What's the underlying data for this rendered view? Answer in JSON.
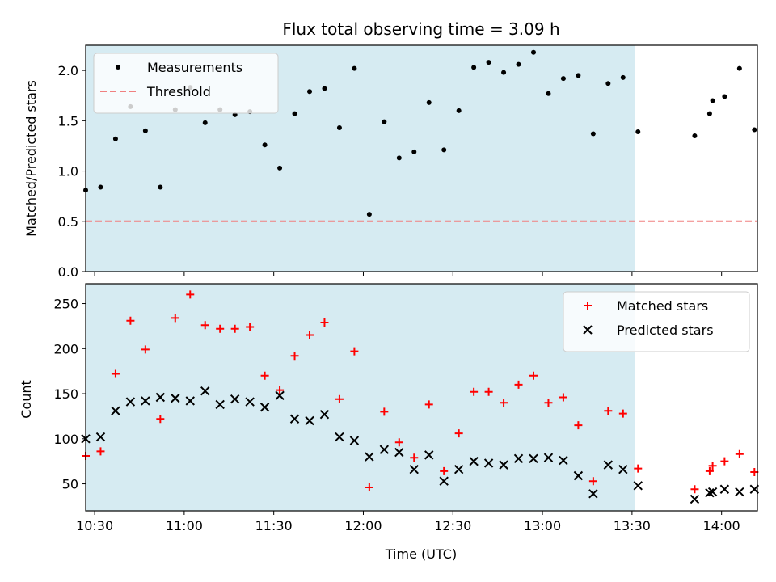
{
  "chart_data": {
    "title": "Flux total observing time = 3.09 h",
    "xlabel": "Time (UTC)",
    "x_unit": "HH:MM (UTC)",
    "xlim": [
      "10:27",
      "14:12"
    ],
    "x_ticks": [
      "10:30",
      "11:00",
      "11:30",
      "12:00",
      "12:30",
      "13:00",
      "13:30",
      "14:00"
    ],
    "shaded_span": {
      "start": "10:27",
      "end": "13:31",
      "color": "#add8e6"
    },
    "panels": [
      {
        "type": "scatter",
        "ylabel": "Matched/Predicted stars",
        "ylim": [
          0,
          2.25
        ],
        "yticks": [
          "0.0",
          "0.5",
          "1.0",
          "1.5",
          "2.0"
        ],
        "legend": {
          "placement": "top-left"
        },
        "threshold": {
          "name": "Threshold",
          "value": 0.5,
          "x_start": "10:27",
          "x_end": "14:12",
          "color": "#f08080",
          "style": "dashed"
        },
        "series": [
          {
            "name": "Measurements",
            "marker": "dot",
            "color": "#000000",
            "points": [
              [
                "10:27",
                0.81
              ],
              [
                "10:32",
                0.84
              ],
              [
                "10:37",
                1.32
              ],
              [
                "10:42",
                1.64
              ],
              [
                "10:47",
                1.4
              ],
              [
                "10:52",
                0.84
              ],
              [
                "10:57",
                1.61
              ],
              [
                "11:02",
                1.83
              ],
              [
                "11:07",
                1.48
              ],
              [
                "11:12",
                1.61
              ],
              [
                "11:17",
                1.56
              ],
              [
                "11:22",
                1.59
              ],
              [
                "11:27",
                1.26
              ],
              [
                "11:32",
                1.03
              ],
              [
                "11:37",
                1.57
              ],
              [
                "11:42",
                1.79
              ],
              [
                "11:47",
                1.82
              ],
              [
                "11:52",
                1.43
              ],
              [
                "11:57",
                2.02
              ],
              [
                "12:02",
                0.57
              ],
              [
                "12:07",
                1.49
              ],
              [
                "12:12",
                1.13
              ],
              [
                "12:17",
                1.19
              ],
              [
                "12:22",
                1.68
              ],
              [
                "12:27",
                1.21
              ],
              [
                "12:32",
                1.6
              ],
              [
                "12:37",
                2.03
              ],
              [
                "12:42",
                2.08
              ],
              [
                "12:47",
                1.98
              ],
              [
                "12:52",
                2.06
              ],
              [
                "12:57",
                2.18
              ],
              [
                "13:02",
                1.77
              ],
              [
                "13:07",
                1.92
              ],
              [
                "13:12",
                1.95
              ],
              [
                "13:17",
                1.37
              ],
              [
                "13:22",
                1.87
              ],
              [
                "13:27",
                1.93
              ],
              [
                "13:32",
                1.39
              ],
              [
                "13:51",
                1.35
              ],
              [
                "13:56",
                1.57
              ],
              [
                "13:57",
                1.7
              ],
              [
                "14:01",
                1.74
              ],
              [
                "14:06",
                2.02
              ],
              [
                "14:11",
                1.41
              ]
            ]
          }
        ]
      },
      {
        "type": "scatter",
        "ylabel": "Count",
        "ylim": [
          20,
          272
        ],
        "yticks": [
          "50",
          "100",
          "150",
          "200",
          "250"
        ],
        "legend": {
          "placement": "top-right"
        },
        "series": [
          {
            "name": "Matched stars",
            "marker": "plus",
            "color": "#ff0000",
            "points": [
              [
                "10:27",
                81
              ],
              [
                "10:32",
                86
              ],
              [
                "10:37",
                172
              ],
              [
                "10:42",
                231
              ],
              [
                "10:47",
                199
              ],
              [
                "10:52",
                122
              ],
              [
                "10:57",
                234
              ],
              [
                "11:02",
                260
              ],
              [
                "11:07",
                226
              ],
              [
                "11:12",
                222
              ],
              [
                "11:17",
                222
              ],
              [
                "11:22",
                224
              ],
              [
                "11:27",
                170
              ],
              [
                "11:32",
                154
              ],
              [
                "11:37",
                192
              ],
              [
                "11:42",
                215
              ],
              [
                "11:47",
                229
              ],
              [
                "11:52",
                144
              ],
              [
                "11:57",
                197
              ],
              [
                "12:02",
                46
              ],
              [
                "12:07",
                130
              ],
              [
                "12:12",
                96
              ],
              [
                "12:17",
                79
              ],
              [
                "12:22",
                138
              ],
              [
                "12:27",
                64
              ],
              [
                "12:32",
                106
              ],
              [
                "12:37",
                152
              ],
              [
                "12:42",
                152
              ],
              [
                "12:47",
                140
              ],
              [
                "12:52",
                160
              ],
              [
                "12:57",
                170
              ],
              [
                "13:02",
                140
              ],
              [
                "13:07",
                146
              ],
              [
                "13:12",
                115
              ],
              [
                "13:17",
                53
              ],
              [
                "13:22",
                131
              ],
              [
                "13:27",
                128
              ],
              [
                "13:32",
                67
              ],
              [
                "13:51",
                44
              ],
              [
                "13:56",
                64
              ],
              [
                "13:57",
                70
              ],
              [
                "14:01",
                75
              ],
              [
                "14:06",
                83
              ],
              [
                "14:11",
                63
              ]
            ]
          },
          {
            "name": "Predicted stars",
            "marker": "x",
            "color": "#000000",
            "points": [
              [
                "10:27",
                100
              ],
              [
                "10:32",
                102
              ],
              [
                "10:37",
                131
              ],
              [
                "10:42",
                141
              ],
              [
                "10:47",
                142
              ],
              [
                "10:52",
                146
              ],
              [
                "10:57",
                145
              ],
              [
                "11:02",
                142
              ],
              [
                "11:07",
                153
              ],
              [
                "11:12",
                138
              ],
              [
                "11:17",
                144
              ],
              [
                "11:22",
                141
              ],
              [
                "11:27",
                135
              ],
              [
                "11:32",
                148
              ],
              [
                "11:37",
                122
              ],
              [
                "11:42",
                120
              ],
              [
                "11:47",
                127
              ],
              [
                "11:52",
                102
              ],
              [
                "11:57",
                98
              ],
              [
                "12:02",
                80
              ],
              [
                "12:07",
                88
              ],
              [
                "12:12",
                85
              ],
              [
                "12:17",
                66
              ],
              [
                "12:22",
                82
              ],
              [
                "12:27",
                53
              ],
              [
                "12:32",
                66
              ],
              [
                "12:37",
                75
              ],
              [
                "12:42",
                73
              ],
              [
                "12:47",
                71
              ],
              [
                "12:52",
                78
              ],
              [
                "12:57",
                78
              ],
              [
                "13:02",
                79
              ],
              [
                "13:07",
                76
              ],
              [
                "13:12",
                59
              ],
              [
                "13:17",
                39
              ],
              [
                "13:22",
                71
              ],
              [
                "13:27",
                66
              ],
              [
                "13:32",
                48
              ],
              [
                "13:51",
                33
              ],
              [
                "13:56",
                40
              ],
              [
                "13:57",
                41
              ],
              [
                "14:01",
                44
              ],
              [
                "14:06",
                41
              ],
              [
                "14:11",
                44
              ]
            ]
          }
        ]
      }
    ]
  }
}
